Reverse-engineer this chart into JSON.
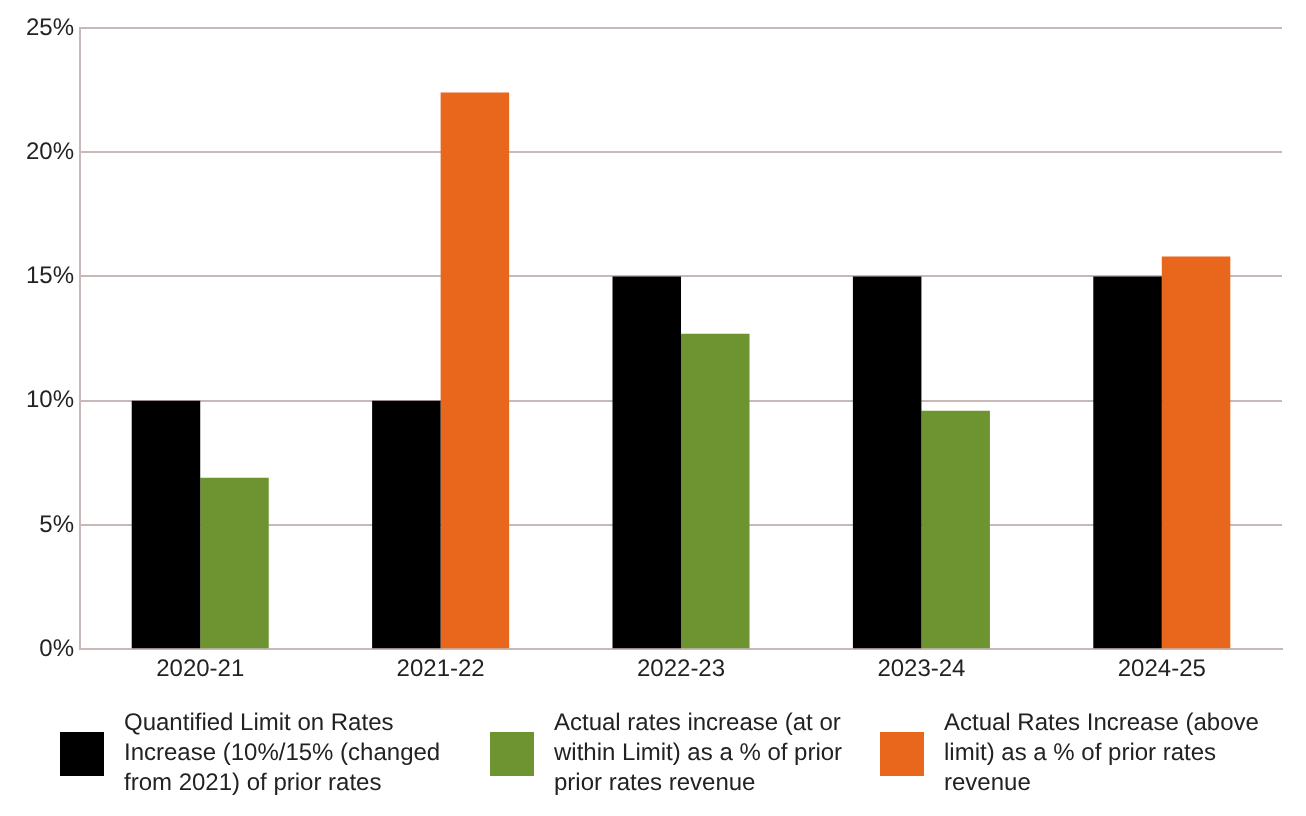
{
  "chart_data": {
    "type": "bar",
    "categories": [
      "2020-21",
      "2021-22",
      "2022-23",
      "2023-24",
      "2024-25"
    ],
    "series": [
      {
        "name": "Quantified Limit on Rates Increase (10%/15% (changed from 2021) of prior rates",
        "color": "#000000",
        "values": [
          10,
          10,
          15,
          15,
          15
        ]
      },
      {
        "name": "Actual rates increase (at or within Limit) as a % of prior prior rates revenue",
        "color": "#6e9432",
        "values": [
          6.9,
          null,
          12.7,
          9.6,
          null
        ]
      },
      {
        "name": "Actual Rates Increase (above limit) as a % of prior rates revenue",
        "color": "#e8671c",
        "values": [
          null,
          22.4,
          null,
          null,
          15.8
        ]
      }
    ],
    "ylim": [
      0,
      25
    ],
    "yticks": [
      {
        "value": 0,
        "label": "0%"
      },
      {
        "value": 5,
        "label": "5%"
      },
      {
        "value": 10,
        "label": "10%"
      },
      {
        "value": 15,
        "label": "15%"
      },
      {
        "value": 20,
        "label": "20%"
      },
      {
        "value": 25,
        "label": "25%"
      }
    ],
    "grid": "y",
    "legend": "bottom"
  }
}
